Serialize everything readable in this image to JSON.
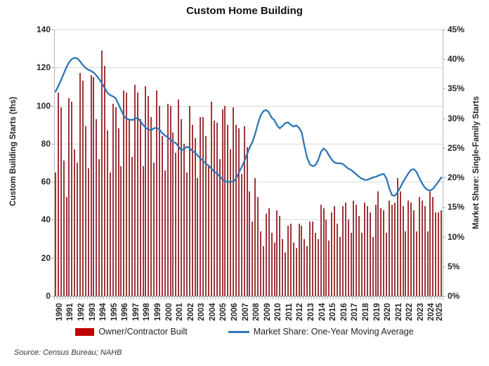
{
  "title": "Custom Home Building",
  "source_note": "Source: Census Bureau; NAHB",
  "legend": {
    "bar_label": "Owner/Contractor Built",
    "line_label": "Market Share: One-Year Moving Average"
  },
  "colors": {
    "bar": "#a0353c",
    "legend_bar_swatch": "#c00000",
    "line": "#2e75b6",
    "gridline": "#d8d8d8",
    "axis_text": "#262626"
  },
  "left_axis": {
    "title": "Custom Building Starts (ths)",
    "min": 0,
    "max": 140,
    "tick_interval": 20,
    "ticks": [
      0,
      20,
      40,
      60,
      80,
      100,
      120,
      140
    ]
  },
  "right_axis": {
    "title": "Market Share: Single-Family Starts",
    "min": 0,
    "max": 45,
    "tick_interval": 5,
    "ticks_percent": [
      0,
      5,
      10,
      15,
      20,
      25,
      30,
      35,
      40,
      45
    ]
  },
  "x_axis": {
    "frequency": "quarterly",
    "start_year": 1990,
    "end_year": 2025,
    "year_labels": [
      "1990",
      "1991",
      "1992",
      "1993",
      "1994",
      "1995",
      "1996",
      "1997",
      "1998",
      "1999",
      "2000",
      "2001",
      "2002",
      "2003",
      "2004",
      "2005",
      "2006",
      "2007",
      "2008",
      "2009",
      "2010",
      "2011",
      "2012",
      "2013",
      "2014",
      "2015",
      "2016",
      "2017",
      "2018",
      "2019",
      "2020",
      "2021",
      "2022",
      "2023",
      "2024",
      "2025"
    ]
  },
  "chart_data": {
    "type": "combo-bar-line",
    "title": "Custom Home Building",
    "grid": true,
    "legend_position": "bottom",
    "bar_series": {
      "name": "Owner/Contractor Built",
      "axis": "left",
      "unit": "thousands of starts",
      "frequency": "quarterly, 1990Q1-2025Q2",
      "values": [
        65,
        107,
        99,
        71,
        52,
        104,
        102,
        77,
        70,
        117,
        113,
        89,
        67,
        116,
        115,
        93,
        72,
        129,
        121,
        87,
        65,
        101,
        99,
        88,
        68,
        108,
        107,
        93,
        73,
        111,
        107,
        93,
        68,
        110,
        105,
        94,
        70,
        108,
        100,
        84,
        66,
        101,
        100,
        86,
        75,
        103,
        93,
        80,
        65,
        100,
        90,
        83,
        62,
        94,
        94,
        84,
        68,
        102,
        92,
        91,
        72,
        98,
        100,
        90,
        77,
        99,
        90,
        88,
        64,
        89,
        78,
        55,
        39,
        62,
        52,
        34,
        26,
        43,
        46,
        33,
        28,
        45,
        42,
        30,
        23,
        37,
        38,
        28,
        25,
        38,
        37,
        30,
        26,
        39,
        39,
        33,
        30,
        48,
        46,
        40,
        29,
        44,
        47,
        38,
        31,
        47,
        49,
        40,
        33,
        50,
        48,
        42,
        33,
        49,
        47,
        44,
        31,
        48,
        55,
        46,
        45,
        33,
        50,
        48,
        49,
        62,
        55,
        47,
        34,
        50,
        49,
        45,
        34,
        52,
        50,
        47,
        34,
        55,
        52,
        44,
        44,
        45
      ]
    },
    "line_series": {
      "name": "Market Share: One-Year Moving Average",
      "axis": "right",
      "unit": "percent",
      "frequency": "quarterly, 1990Q1-2025Q2",
      "values": [
        34.5,
        35.4,
        36.4,
        37.5,
        38.6,
        39.5,
        40.0,
        40.2,
        40.1,
        39.6,
        39.0,
        38.5,
        38.2,
        38.0,
        37.7,
        37.2,
        36.6,
        35.9,
        35.1,
        34.3,
        33.9,
        33.7,
        33.4,
        32.4,
        31.4,
        30.4,
        29.9,
        29.8,
        29.7,
        29.9,
        30.1,
        29.5,
        28.9,
        28.4,
        28.1,
        28.0,
        28.3,
        28.4,
        28.1,
        27.5,
        27.1,
        26.8,
        26.4,
        26.0,
        25.8,
        25.2,
        24.6,
        24.8,
        25.2,
        25.0,
        24.5,
        24.2,
        23.7,
        23.2,
        22.8,
        22.3,
        22.0,
        21.5,
        21.0,
        20.7,
        20.2,
        19.7,
        19.4,
        19.2,
        19.3,
        19.3,
        19.8,
        20.8,
        21.7,
        22.7,
        23.9,
        25.1,
        26.0,
        27.4,
        29.1,
        30.5,
        31.2,
        31.4,
        31.0,
        30.1,
        29.7,
        28.8,
        28.3,
        28.7,
        29.2,
        29.3,
        28.9,
        28.6,
        28.8,
        28.4,
        27.6,
        25.3,
        23.3,
        22.2,
        21.9,
        22.1,
        22.9,
        24.3,
        24.9,
        24.5,
        23.7,
        23.0,
        22.5,
        22.4,
        22.4,
        22.3,
        21.9,
        21.5,
        21.3,
        20.9,
        20.5,
        20.1,
        19.8,
        19.6,
        19.6,
        19.8,
        20.0,
        20.1,
        20.3,
        20.5,
        20.6,
        19.8,
        18.2,
        17.0,
        16.9,
        17.5,
        18.3,
        19.2,
        20.0,
        20.7,
        21.3,
        21.4,
        20.9,
        19.9,
        19.0,
        18.3,
        17.9,
        17.8,
        18.1,
        18.7,
        19.3,
        20.0
      ]
    }
  }
}
